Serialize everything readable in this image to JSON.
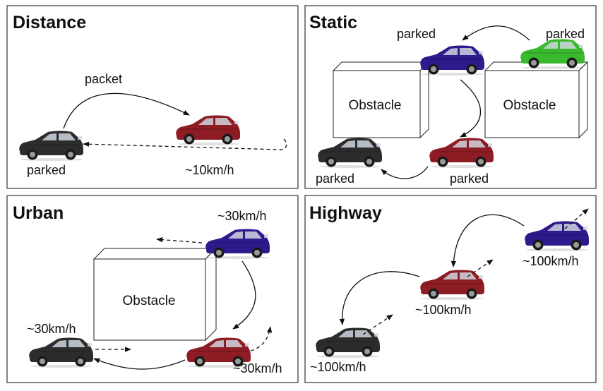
{
  "panels": {
    "distance": {
      "title": "Distance",
      "packet_label": "packet",
      "left_car_label": "parked",
      "right_car_label": "~10km/h"
    },
    "static": {
      "title": "Static",
      "obstacle_left": "Obstacle",
      "obstacle_right": "Obstacle",
      "top_middle_label": "parked",
      "top_right_label": "parked",
      "bottom_left_label": "parked",
      "bottom_right_label": "parked"
    },
    "urban": {
      "title": "Urban",
      "obstacle": "Obstacle",
      "top_car_label": "~30km/h",
      "left_car_label": "~30km/h",
      "bottom_car_label": "~30km/h"
    },
    "highway": {
      "title": "Highway",
      "top_car_label": "~100km/h",
      "middle_car_label": "~100km/h",
      "bottom_car_label": "~100km/h"
    }
  },
  "colors": {
    "red_car": "#8e1c24",
    "black_car": "#2c2c2c",
    "blue_car": "#2e1a8c",
    "green_car": "#3bb92e",
    "panel_border": "#333333"
  },
  "icons": {
    "car": "car-icon",
    "obstacle": "obstacle-box"
  }
}
